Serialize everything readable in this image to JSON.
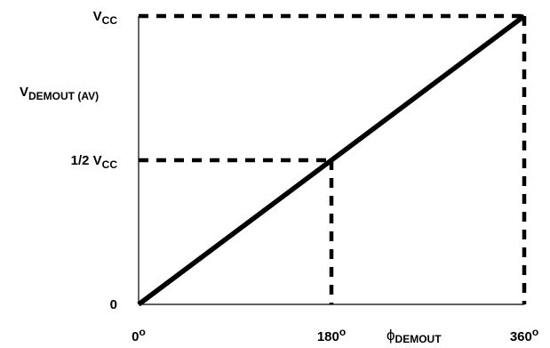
{
  "chart_data": {
    "type": "line",
    "title": "",
    "xlabel": {
      "main": "ϕ",
      "sub": "DEMOUT"
    },
    "ylabel": {
      "main": "V",
      "sub": "DEMOUT (AV)"
    },
    "x": [
      0,
      360
    ],
    "y": [
      0,
      1
    ],
    "xlim": [
      0,
      360
    ],
    "ylim": [
      0,
      1
    ],
    "grid": false,
    "x_ticks": [
      {
        "value": 0,
        "label": "0",
        "sup": "o"
      },
      {
        "value": 180,
        "label": "180",
        "sup": "o"
      },
      {
        "value": 360,
        "label": "360",
        "sup": "o"
      }
    ],
    "y_ticks": [
      {
        "value": 0,
        "label": "0",
        "sub": ""
      },
      {
        "value": 0.5,
        "label": "1/2 V",
        "sub": "CC"
      },
      {
        "value": 1,
        "label": "V",
        "sub": "CC"
      }
    ],
    "guide_points": [
      {
        "x": 180,
        "y": 0.5
      },
      {
        "x": 360,
        "y": 1
      }
    ],
    "line_color": "#000000"
  }
}
